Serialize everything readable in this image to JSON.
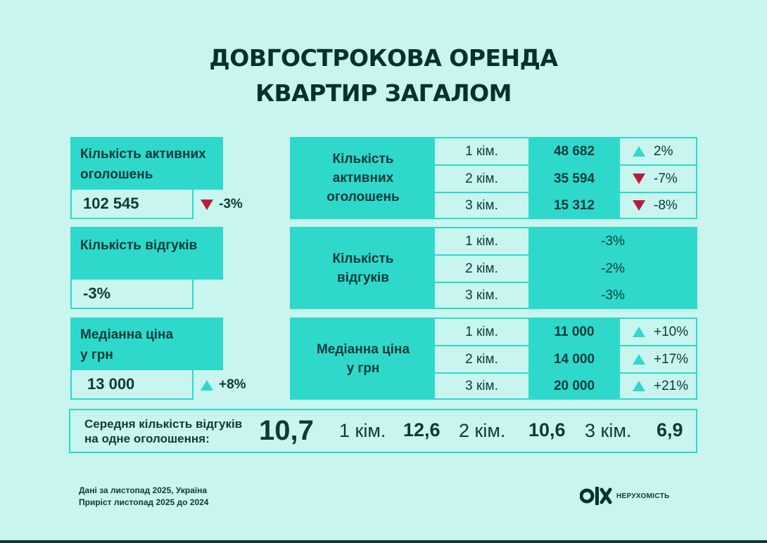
{
  "title_line1": "ДОВГОСТРОКОВА ОРЕНДА",
  "title_line2": "КВАРТИР ЗАГАЛОМ",
  "left": {
    "listings": {
      "label_line1": "Кількість активних",
      "label_line2": "оголошень",
      "value": "102 545",
      "change": "-3%",
      "direction": "down"
    },
    "responses": {
      "label": "Кількість відгуків",
      "value": "-3%"
    },
    "price": {
      "label_line1": "Медіанна ціна",
      "label_line2": "у грн",
      "value": "13 000",
      "change": "+8%",
      "direction": "up"
    }
  },
  "groups": {
    "listings": {
      "label_line1": "Кількість",
      "label_line2": "активних",
      "label_line3": "оголошень",
      "rows": [
        {
          "rooms": "1 кім.",
          "value": "48 682",
          "change": "2%",
          "direction": "up"
        },
        {
          "rooms": "2 кім.",
          "value": "35 594",
          "change": "-7%",
          "direction": "down"
        },
        {
          "rooms": "3 кім.",
          "value": "15 312",
          "change": "-8%",
          "direction": "down"
        }
      ]
    },
    "responses": {
      "label_line1": "Кількість",
      "label_line2": "відгуків",
      "rows": [
        {
          "rooms": "1 кім.",
          "change": "-3%"
        },
        {
          "rooms": "2 кім.",
          "change": "-2%"
        },
        {
          "rooms": "3 кім.",
          "change": "-3%"
        }
      ]
    },
    "price": {
      "label_line1": "Медіанна ціна",
      "label_line2": "у грн",
      "rows": [
        {
          "rooms": "1 кім.",
          "value": "11 000",
          "change": "+10%",
          "direction": "up"
        },
        {
          "rooms": "2 кім.",
          "value": "14 000",
          "change": "+17%",
          "direction": "up"
        },
        {
          "rooms": "3 кім.",
          "value": "20 000",
          "change": "+21%",
          "direction": "up"
        }
      ]
    }
  },
  "average": {
    "label_line1": "Середня кількість відгуків",
    "label_line2": "на одне оголошення:",
    "total": "10,7",
    "items": [
      {
        "rooms": "1 кім.",
        "value": "12,6"
      },
      {
        "rooms": "2 кім.",
        "value": "10,6"
      },
      {
        "rooms": "3 кім.",
        "value": "6,9"
      }
    ]
  },
  "footer": {
    "line1": "Дані за листопад 2025, Україна",
    "line2": "Приріст листопад 2025 до 2024"
  },
  "logo": {
    "mark": "olx",
    "text": "НЕРУХОМІСТЬ"
  },
  "colors": {
    "background": "#c8f5ee",
    "teal": "#2ed9cc",
    "text": "#0c3a36",
    "down": "#b71c3a"
  }
}
